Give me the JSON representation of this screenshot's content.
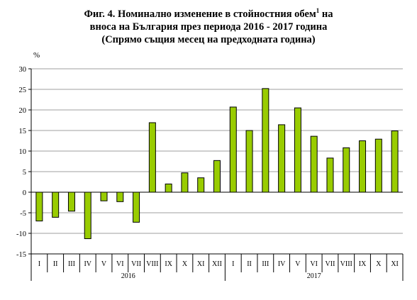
{
  "chart_data": {
    "type": "bar",
    "title_line1": "Фиг. 4. Номинално изменение в стойностния обем",
    "title_sup": "1",
    "title_line1_end": " на",
    "title_line2": "вноса на България през периода 2016 - 2017 година",
    "title_line3": "(Спрямо същия месец на предходната година)",
    "ylabel": "%",
    "ylim": [
      -15,
      30
    ],
    "yticks": [
      -15,
      -10,
      -5,
      0,
      5,
      10,
      15,
      20,
      25,
      30
    ],
    "grid": true,
    "bar_color": "#99cc00",
    "groups": [
      {
        "label": "2016",
        "count": 12
      },
      {
        "label": "2017",
        "count": 11
      }
    ],
    "categories": [
      "I",
      "II",
      "III",
      "IV",
      "V",
      "VI",
      "VII",
      "VIII",
      "IX",
      "X",
      "XI",
      "XII",
      "I",
      "II",
      "III",
      "IV",
      "V",
      "VI",
      "VII",
      "VIII",
      "IX",
      "X",
      "XI"
    ],
    "values": [
      -7.0,
      -6.1,
      -4.6,
      -11.3,
      -2.1,
      -2.3,
      -7.3,
      16.9,
      2.0,
      4.7,
      3.5,
      7.7,
      20.7,
      15.0,
      25.2,
      16.4,
      20.5,
      13.6,
      8.3,
      10.8,
      12.5,
      12.9,
      14.9
    ]
  }
}
